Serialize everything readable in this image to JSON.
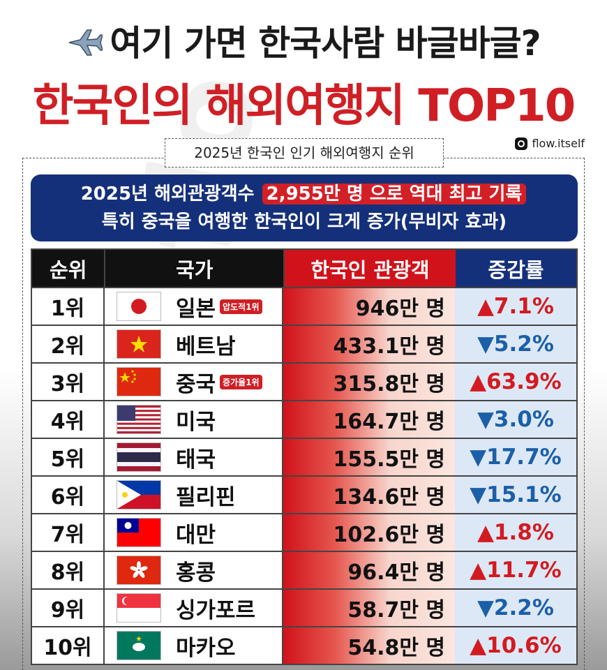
{
  "header": {
    "plane_emoji": "✈️",
    "title_line1": "여기 가면 한국사람 바글바글?",
    "title_line2": "한국인의 해외여행지 TOP10",
    "source": "flow.itself",
    "subtitle": "2025년 한국인 인기 해외여행지 순위"
  },
  "banner": {
    "line1_pre": "2025년 해외관광객수 ",
    "line1_highlight": "2,955만 명 으로 역대 최고 기록",
    "line2": "특히 중국을 여행한 한국인이 크게 증가(무비자 효과)"
  },
  "colors": {
    "accent_red": "#cf1f25",
    "navy": "#15307a",
    "up": "#d21b20",
    "down": "#1b5fa8"
  },
  "chart_data": {
    "type": "table",
    "columns": [
      "순위",
      "국가",
      "한국인 관광객",
      "증감률"
    ],
    "rows": [
      {
        "rank": "1위",
        "country": "일본",
        "flag": "japan-flag",
        "badge": "압도적1위",
        "tourists": "946만 명",
        "tourists_value": 946,
        "change": "▲7.1%",
        "change_value": 7.1,
        "dir": "up"
      },
      {
        "rank": "2위",
        "country": "베트남",
        "flag": "vietnam-flag",
        "badge": "",
        "tourists": "433.1만 명",
        "tourists_value": 433.1,
        "change": "▼5.2%",
        "change_value": -5.2,
        "dir": "down"
      },
      {
        "rank": "3위",
        "country": "중국",
        "flag": "china-flag",
        "badge": "증가율1위",
        "tourists": "315.8만 명",
        "tourists_value": 315.8,
        "change": "▲63.9%",
        "change_value": 63.9,
        "dir": "up"
      },
      {
        "rank": "4위",
        "country": "미국",
        "flag": "usa-flag",
        "badge": "",
        "tourists": "164.7만 명",
        "tourists_value": 164.7,
        "change": "▼3.0%",
        "change_value": -3.0,
        "dir": "down"
      },
      {
        "rank": "5위",
        "country": "태국",
        "flag": "thailand-flag",
        "badge": "",
        "tourists": "155.5만 명",
        "tourists_value": 155.5,
        "change": "▼17.7%",
        "change_value": -17.7,
        "dir": "down"
      },
      {
        "rank": "6위",
        "country": "필리핀",
        "flag": "philippines-flag",
        "badge": "",
        "tourists": "134.6만 명",
        "tourists_value": 134.6,
        "change": "▼15.1%",
        "change_value": -15.1,
        "dir": "down"
      },
      {
        "rank": "7위",
        "country": "대만",
        "flag": "taiwan-flag",
        "badge": "",
        "tourists": "102.6만 명",
        "tourists_value": 102.6,
        "change": "▲1.8%",
        "change_value": 1.8,
        "dir": "up"
      },
      {
        "rank": "8위",
        "country": "홍콩",
        "flag": "hongkong-flag",
        "badge": "",
        "tourists": "96.4만 명",
        "tourists_value": 96.4,
        "change": "▲11.7%",
        "change_value": 11.7,
        "dir": "up"
      },
      {
        "rank": "9위",
        "country": "싱가포르",
        "flag": "singapore-flag",
        "badge": "",
        "tourists": "58.7만 명",
        "tourists_value": 58.7,
        "change": "▼2.2%",
        "change_value": -2.2,
        "dir": "down"
      },
      {
        "rank": "10위",
        "country": "마카오",
        "flag": "macau-flag",
        "badge": "",
        "tourists": "54.8만 명",
        "tourists_value": 54.8,
        "change": "▲10.6%",
        "change_value": 10.6,
        "dir": "up"
      }
    ]
  }
}
